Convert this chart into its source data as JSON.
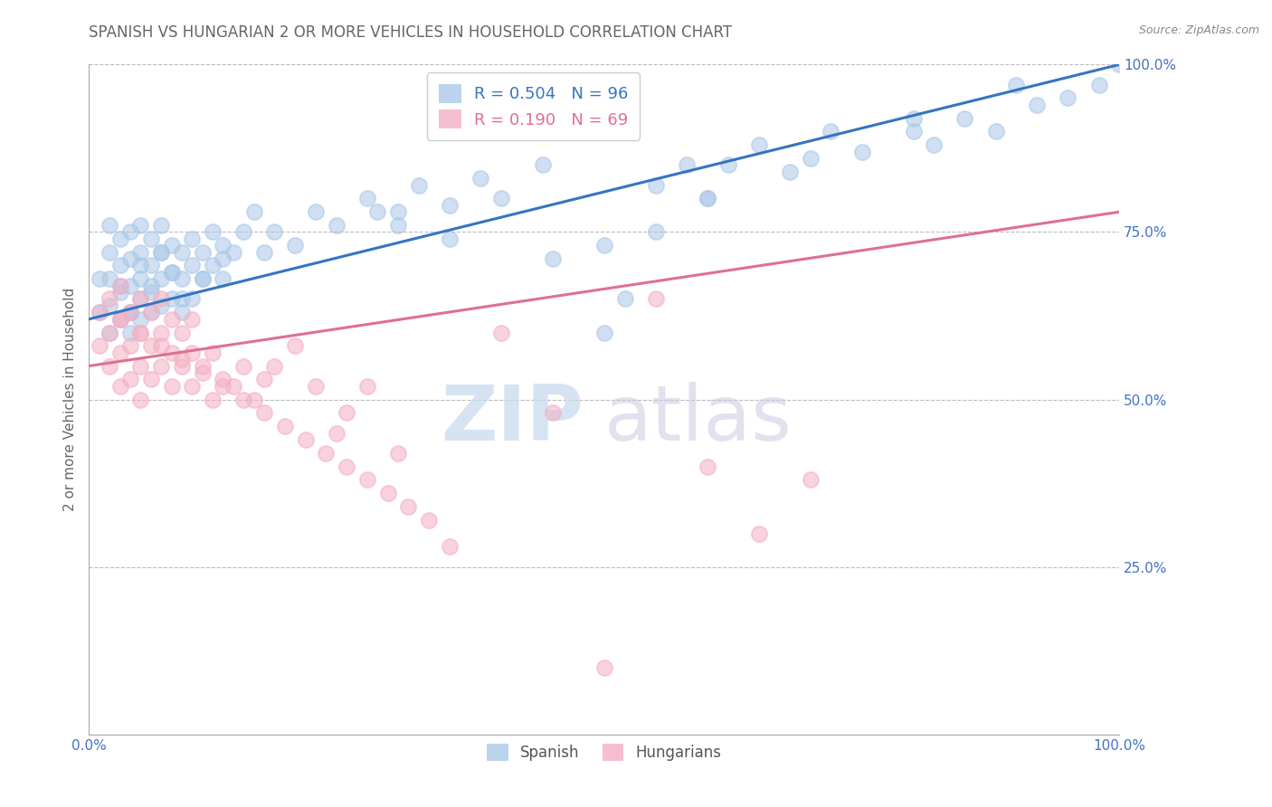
{
  "title": "SPANISH VS HUNGARIAN 2 OR MORE VEHICLES IN HOUSEHOLD CORRELATION CHART",
  "source": "Source: ZipAtlas.com",
  "ylabel": "2 or more Vehicles in Household",
  "xlim": [
    0.0,
    1.0
  ],
  "ylim": [
    0.0,
    1.0
  ],
  "ytick_positions": [
    0.0,
    0.25,
    0.5,
    0.75,
    1.0
  ],
  "ytick_labels_right": [
    "",
    "25.0%",
    "50.0%",
    "75.0%",
    "100.0%"
  ],
  "legend_blue_R": "0.504",
  "legend_blue_N": "96",
  "legend_pink_R": "0.190",
  "legend_pink_N": "69",
  "watermark_zip": "ZIP",
  "watermark_atlas": "atlas",
  "blue_color": "#aac8e8",
  "pink_color": "#f4b0c4",
  "blue_line_color": "#3575c0",
  "pink_line_color": "#e07090",
  "background_color": "#ffffff",
  "grid_color": "#bbbbbb",
  "title_color": "#666666",
  "axis_label_color": "#666666",
  "tick_label_color": "#4472c4",
  "source_color": "#888888",
  "blue_x": [
    0.01,
    0.01,
    0.02,
    0.02,
    0.02,
    0.02,
    0.02,
    0.03,
    0.03,
    0.03,
    0.03,
    0.04,
    0.04,
    0.04,
    0.04,
    0.04,
    0.05,
    0.05,
    0.05,
    0.05,
    0.05,
    0.06,
    0.06,
    0.06,
    0.06,
    0.07,
    0.07,
    0.07,
    0.07,
    0.08,
    0.08,
    0.08,
    0.09,
    0.09,
    0.09,
    0.1,
    0.1,
    0.1,
    0.11,
    0.11,
    0.12,
    0.12,
    0.13,
    0.13,
    0.14,
    0.15,
    0.16,
    0.17,
    0.18,
    0.2,
    0.22,
    0.24,
    0.27,
    0.3,
    0.32,
    0.35,
    0.38,
    0.4,
    0.44,
    0.5,
    0.52,
    0.55,
    0.58,
    0.6,
    0.62,
    0.65,
    0.68,
    0.72,
    0.75,
    0.8,
    0.82,
    0.85,
    0.88,
    0.92,
    0.95,
    0.98,
    1.0,
    0.03,
    0.05,
    0.07,
    0.09,
    0.11,
    0.13,
    0.04,
    0.06,
    0.08,
    0.28,
    0.3,
    0.35,
    0.45,
    0.5,
    0.55,
    0.6,
    0.7,
    0.8,
    0.9
  ],
  "blue_y": [
    0.63,
    0.68,
    0.6,
    0.64,
    0.68,
    0.72,
    0.76,
    0.62,
    0.66,
    0.7,
    0.74,
    0.6,
    0.63,
    0.67,
    0.71,
    0.75,
    0.62,
    0.65,
    0.68,
    0.72,
    0.76,
    0.63,
    0.67,
    0.7,
    0.74,
    0.64,
    0.68,
    0.72,
    0.76,
    0.65,
    0.69,
    0.73,
    0.63,
    0.68,
    0.72,
    0.65,
    0.7,
    0.74,
    0.68,
    0.72,
    0.7,
    0.75,
    0.68,
    0.73,
    0.72,
    0.75,
    0.78,
    0.72,
    0.75,
    0.73,
    0.78,
    0.76,
    0.8,
    0.78,
    0.82,
    0.79,
    0.83,
    0.8,
    0.85,
    0.6,
    0.65,
    0.82,
    0.85,
    0.8,
    0.85,
    0.88,
    0.84,
    0.9,
    0.87,
    0.9,
    0.88,
    0.92,
    0.9,
    0.94,
    0.95,
    0.97,
    1.0,
    0.67,
    0.7,
    0.72,
    0.65,
    0.68,
    0.71,
    0.63,
    0.66,
    0.69,
    0.78,
    0.76,
    0.74,
    0.71,
    0.73,
    0.75,
    0.8,
    0.86,
    0.92,
    0.97
  ],
  "pink_x": [
    0.01,
    0.01,
    0.02,
    0.02,
    0.02,
    0.03,
    0.03,
    0.03,
    0.03,
    0.04,
    0.04,
    0.04,
    0.05,
    0.05,
    0.05,
    0.05,
    0.06,
    0.06,
    0.06,
    0.07,
    0.07,
    0.07,
    0.08,
    0.08,
    0.08,
    0.09,
    0.09,
    0.1,
    0.1,
    0.1,
    0.11,
    0.12,
    0.12,
    0.13,
    0.14,
    0.15,
    0.16,
    0.17,
    0.18,
    0.2,
    0.22,
    0.24,
    0.25,
    0.27,
    0.3,
    0.35,
    0.4,
    0.45,
    0.5,
    0.55,
    0.6,
    0.65,
    0.7,
    0.03,
    0.05,
    0.07,
    0.09,
    0.11,
    0.13,
    0.15,
    0.17,
    0.19,
    0.21,
    0.23,
    0.25,
    0.27,
    0.29,
    0.31,
    0.33
  ],
  "pink_y": [
    0.58,
    0.63,
    0.55,
    0.6,
    0.65,
    0.52,
    0.57,
    0.62,
    0.67,
    0.53,
    0.58,
    0.63,
    0.5,
    0.55,
    0.6,
    0.65,
    0.53,
    0.58,
    0.63,
    0.55,
    0.6,
    0.65,
    0.52,
    0.57,
    0.62,
    0.55,
    0.6,
    0.52,
    0.57,
    0.62,
    0.55,
    0.5,
    0.57,
    0.53,
    0.52,
    0.55,
    0.5,
    0.53,
    0.55,
    0.58,
    0.52,
    0.45,
    0.48,
    0.52,
    0.42,
    0.28,
    0.6,
    0.48,
    0.1,
    0.65,
    0.4,
    0.3,
    0.38,
    0.62,
    0.6,
    0.58,
    0.56,
    0.54,
    0.52,
    0.5,
    0.48,
    0.46,
    0.44,
    0.42,
    0.4,
    0.38,
    0.36,
    0.34,
    0.32
  ]
}
